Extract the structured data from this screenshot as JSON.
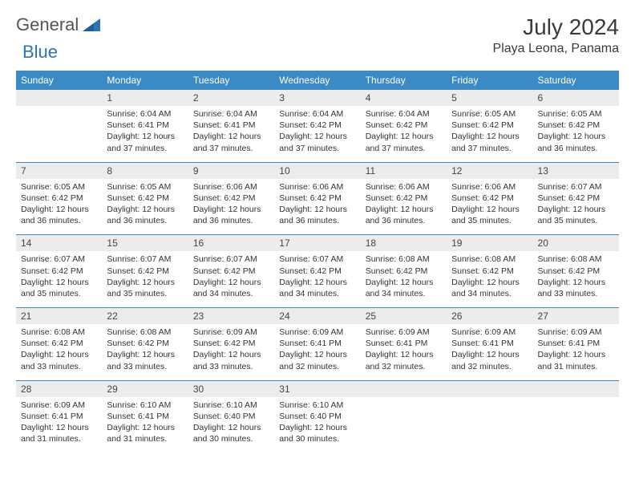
{
  "logo": {
    "text1": "General",
    "text2": "Blue"
  },
  "title": "July 2024",
  "location": "Playa Leona, Panama",
  "colors": {
    "header_bg": "#3b8ac4",
    "header_text": "#ffffff",
    "daynum_bg": "#ececec",
    "border": "#3b8ac4",
    "logo_blue": "#2a74b8"
  },
  "day_headers": [
    "Sunday",
    "Monday",
    "Tuesday",
    "Wednesday",
    "Thursday",
    "Friday",
    "Saturday"
  ],
  "weeks": [
    {
      "nums": [
        "",
        "1",
        "2",
        "3",
        "4",
        "5",
        "6"
      ],
      "cells": [
        null,
        {
          "sr": "Sunrise: 6:04 AM",
          "ss": "Sunset: 6:41 PM",
          "d1": "Daylight: 12 hours",
          "d2": "and 37 minutes."
        },
        {
          "sr": "Sunrise: 6:04 AM",
          "ss": "Sunset: 6:41 PM",
          "d1": "Daylight: 12 hours",
          "d2": "and 37 minutes."
        },
        {
          "sr": "Sunrise: 6:04 AM",
          "ss": "Sunset: 6:42 PM",
          "d1": "Daylight: 12 hours",
          "d2": "and 37 minutes."
        },
        {
          "sr": "Sunrise: 6:04 AM",
          "ss": "Sunset: 6:42 PM",
          "d1": "Daylight: 12 hours",
          "d2": "and 37 minutes."
        },
        {
          "sr": "Sunrise: 6:05 AM",
          "ss": "Sunset: 6:42 PM",
          "d1": "Daylight: 12 hours",
          "d2": "and 37 minutes."
        },
        {
          "sr": "Sunrise: 6:05 AM",
          "ss": "Sunset: 6:42 PM",
          "d1": "Daylight: 12 hours",
          "d2": "and 36 minutes."
        }
      ]
    },
    {
      "nums": [
        "7",
        "8",
        "9",
        "10",
        "11",
        "12",
        "13"
      ],
      "cells": [
        {
          "sr": "Sunrise: 6:05 AM",
          "ss": "Sunset: 6:42 PM",
          "d1": "Daylight: 12 hours",
          "d2": "and 36 minutes."
        },
        {
          "sr": "Sunrise: 6:05 AM",
          "ss": "Sunset: 6:42 PM",
          "d1": "Daylight: 12 hours",
          "d2": "and 36 minutes."
        },
        {
          "sr": "Sunrise: 6:06 AM",
          "ss": "Sunset: 6:42 PM",
          "d1": "Daylight: 12 hours",
          "d2": "and 36 minutes."
        },
        {
          "sr": "Sunrise: 6:06 AM",
          "ss": "Sunset: 6:42 PM",
          "d1": "Daylight: 12 hours",
          "d2": "and 36 minutes."
        },
        {
          "sr": "Sunrise: 6:06 AM",
          "ss": "Sunset: 6:42 PM",
          "d1": "Daylight: 12 hours",
          "d2": "and 36 minutes."
        },
        {
          "sr": "Sunrise: 6:06 AM",
          "ss": "Sunset: 6:42 PM",
          "d1": "Daylight: 12 hours",
          "d2": "and 35 minutes."
        },
        {
          "sr": "Sunrise: 6:07 AM",
          "ss": "Sunset: 6:42 PM",
          "d1": "Daylight: 12 hours",
          "d2": "and 35 minutes."
        }
      ]
    },
    {
      "nums": [
        "14",
        "15",
        "16",
        "17",
        "18",
        "19",
        "20"
      ],
      "cells": [
        {
          "sr": "Sunrise: 6:07 AM",
          "ss": "Sunset: 6:42 PM",
          "d1": "Daylight: 12 hours",
          "d2": "and 35 minutes."
        },
        {
          "sr": "Sunrise: 6:07 AM",
          "ss": "Sunset: 6:42 PM",
          "d1": "Daylight: 12 hours",
          "d2": "and 35 minutes."
        },
        {
          "sr": "Sunrise: 6:07 AM",
          "ss": "Sunset: 6:42 PM",
          "d1": "Daylight: 12 hours",
          "d2": "and 34 minutes."
        },
        {
          "sr": "Sunrise: 6:07 AM",
          "ss": "Sunset: 6:42 PM",
          "d1": "Daylight: 12 hours",
          "d2": "and 34 minutes."
        },
        {
          "sr": "Sunrise: 6:08 AM",
          "ss": "Sunset: 6:42 PM",
          "d1": "Daylight: 12 hours",
          "d2": "and 34 minutes."
        },
        {
          "sr": "Sunrise: 6:08 AM",
          "ss": "Sunset: 6:42 PM",
          "d1": "Daylight: 12 hours",
          "d2": "and 34 minutes."
        },
        {
          "sr": "Sunrise: 6:08 AM",
          "ss": "Sunset: 6:42 PM",
          "d1": "Daylight: 12 hours",
          "d2": "and 33 minutes."
        }
      ]
    },
    {
      "nums": [
        "21",
        "22",
        "23",
        "24",
        "25",
        "26",
        "27"
      ],
      "cells": [
        {
          "sr": "Sunrise: 6:08 AM",
          "ss": "Sunset: 6:42 PM",
          "d1": "Daylight: 12 hours",
          "d2": "and 33 minutes."
        },
        {
          "sr": "Sunrise: 6:08 AM",
          "ss": "Sunset: 6:42 PM",
          "d1": "Daylight: 12 hours",
          "d2": "and 33 minutes."
        },
        {
          "sr": "Sunrise: 6:09 AM",
          "ss": "Sunset: 6:42 PM",
          "d1": "Daylight: 12 hours",
          "d2": "and 33 minutes."
        },
        {
          "sr": "Sunrise: 6:09 AM",
          "ss": "Sunset: 6:41 PM",
          "d1": "Daylight: 12 hours",
          "d2": "and 32 minutes."
        },
        {
          "sr": "Sunrise: 6:09 AM",
          "ss": "Sunset: 6:41 PM",
          "d1": "Daylight: 12 hours",
          "d2": "and 32 minutes."
        },
        {
          "sr": "Sunrise: 6:09 AM",
          "ss": "Sunset: 6:41 PM",
          "d1": "Daylight: 12 hours",
          "d2": "and 32 minutes."
        },
        {
          "sr": "Sunrise: 6:09 AM",
          "ss": "Sunset: 6:41 PM",
          "d1": "Daylight: 12 hours",
          "d2": "and 31 minutes."
        }
      ]
    },
    {
      "nums": [
        "28",
        "29",
        "30",
        "31",
        "",
        "",
        ""
      ],
      "cells": [
        {
          "sr": "Sunrise: 6:09 AM",
          "ss": "Sunset: 6:41 PM",
          "d1": "Daylight: 12 hours",
          "d2": "and 31 minutes."
        },
        {
          "sr": "Sunrise: 6:10 AM",
          "ss": "Sunset: 6:41 PM",
          "d1": "Daylight: 12 hours",
          "d2": "and 31 minutes."
        },
        {
          "sr": "Sunrise: 6:10 AM",
          "ss": "Sunset: 6:40 PM",
          "d1": "Daylight: 12 hours",
          "d2": "and 30 minutes."
        },
        {
          "sr": "Sunrise: 6:10 AM",
          "ss": "Sunset: 6:40 PM",
          "d1": "Daylight: 12 hours",
          "d2": "and 30 minutes."
        },
        null,
        null,
        null
      ]
    }
  ]
}
